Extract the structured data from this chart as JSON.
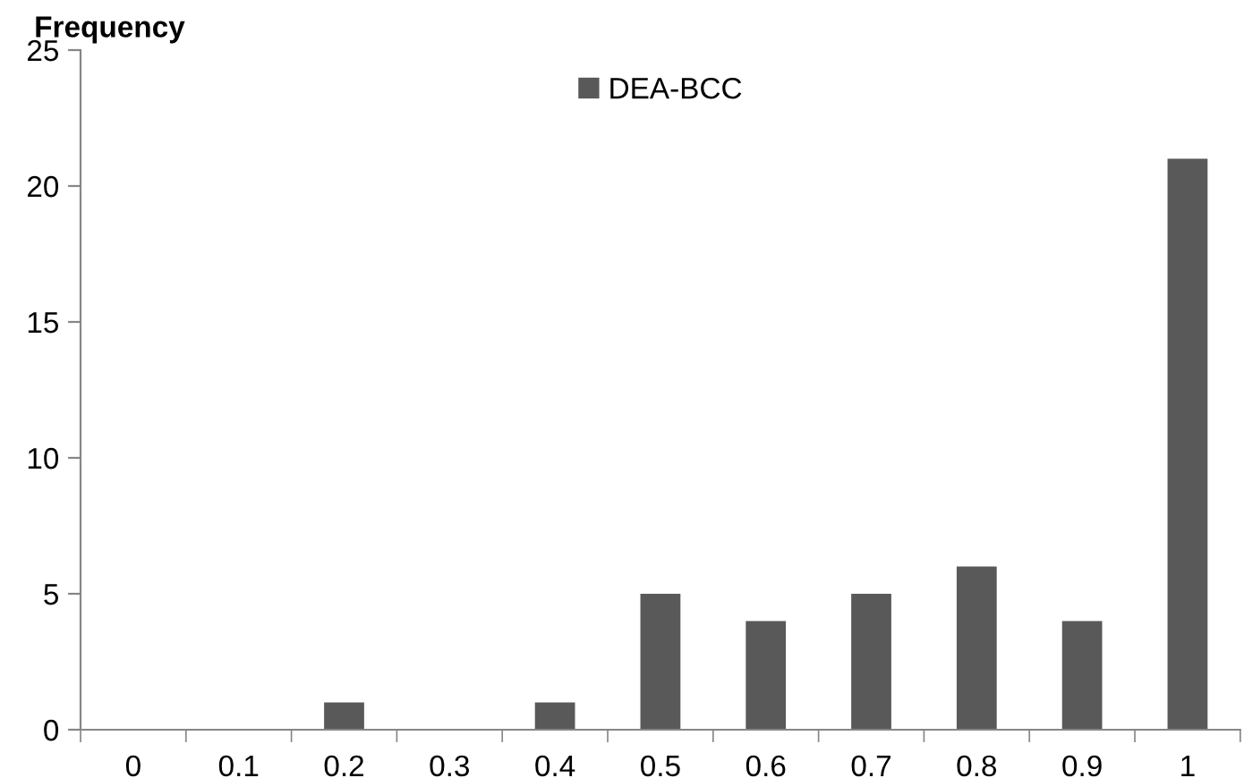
{
  "chart_data": {
    "type": "bar",
    "ylabel": "Frequency",
    "categories": [
      "0",
      "0.1",
      "0.2",
      "0.3",
      "0.4",
      "0.5",
      "0.6",
      "0.7",
      "0.8",
      "0.9",
      "1"
    ],
    "series": [
      {
        "name": "DEA-BCC",
        "color": "#595959",
        "values": [
          0,
          0,
          1,
          0,
          1,
          5,
          4,
          5,
          6,
          4,
          21
        ]
      }
    ],
    "ylim": [
      0,
      25
    ],
    "yticks": [
      0,
      5,
      10,
      15,
      20,
      25
    ],
    "grid": false,
    "legend": "top"
  }
}
